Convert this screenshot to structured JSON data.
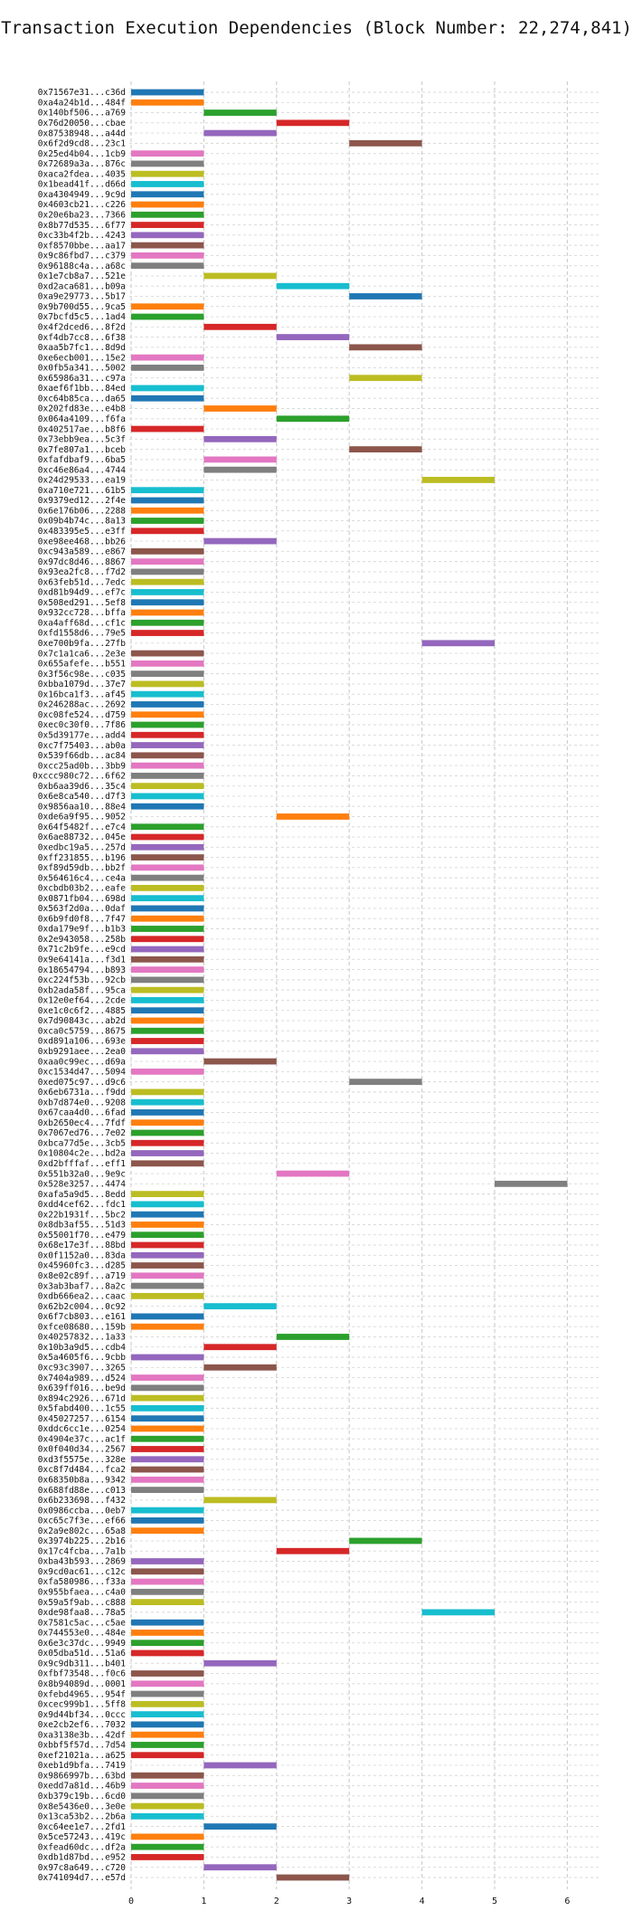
{
  "chart_data": {
    "type": "bar",
    "orientation": "horizontal-gantt",
    "title": "Transaction Execution Dependencies (Block Number: 22,274,841)",
    "xlabel": "",
    "ylabel": "",
    "xlim": [
      0,
      6.3
    ],
    "xticks": [
      0,
      1,
      2,
      3,
      4,
      5,
      6
    ],
    "grid": "vertical dashed",
    "palette": [
      "#1f77b4",
      "#ff7f0e",
      "#2ca02c",
      "#d62728",
      "#9467bd",
      "#8c564b",
      "#e377c2",
      "#7f7f7f",
      "#bcbd22",
      "#17becf"
    ],
    "series": [
      {
        "label": "0x71567e31...c36d",
        "start": 0
      },
      {
        "label": "0xa4a24b1d...484f",
        "start": 0
      },
      {
        "label": "0x140bf506...a769",
        "start": 1
      },
      {
        "label": "0x76d20050...cbae",
        "start": 2
      },
      {
        "label": "0x87538948...a44d",
        "start": 1
      },
      {
        "label": "0x6f2d9cd8...23c1",
        "start": 3
      },
      {
        "label": "0x25ed4b04...1cb9",
        "start": 0
      },
      {
        "label": "0x72689a3a...876c",
        "start": 0
      },
      {
        "label": "0xaca2fdea...4035",
        "start": 0
      },
      {
        "label": "0x1bead41f...d66d",
        "start": 0
      },
      {
        "label": "0xa4304949...9c9d",
        "start": 0
      },
      {
        "label": "0x4603cb21...c226",
        "start": 0
      },
      {
        "label": "0x20e6ba23...7366",
        "start": 0
      },
      {
        "label": "0x8b77d535...6f77",
        "start": 0
      },
      {
        "label": "0xc33b4f2b...4243",
        "start": 0
      },
      {
        "label": "0xf8570bbe...aa17",
        "start": 0
      },
      {
        "label": "0x9c86fbd7...c379",
        "start": 0
      },
      {
        "label": "0x96188c4a...a68c",
        "start": 0
      },
      {
        "label": "0x1e7cb8a7...521e",
        "start": 1
      },
      {
        "label": "0xd2aca681...b09a",
        "start": 2
      },
      {
        "label": "0xa9e29773...5b17",
        "start": 3
      },
      {
        "label": "0x9b700d55...9ca5",
        "start": 0
      },
      {
        "label": "0x7bcfd5c5...1ad4",
        "start": 0
      },
      {
        "label": "0x4f2dced6...8f2d",
        "start": 1
      },
      {
        "label": "0xf4db7cc8...6f38",
        "start": 2
      },
      {
        "label": "0xaa5b7fc1...8d9d",
        "start": 3
      },
      {
        "label": "0xe6ecb001...15e2",
        "start": 0
      },
      {
        "label": "0x0fb5a341...5002",
        "start": 0
      },
      {
        "label": "0x65986a31...c97a",
        "start": 3
      },
      {
        "label": "0xaef6f1bb...84ed",
        "start": 0
      },
      {
        "label": "0xc64b85ca...da65",
        "start": 0
      },
      {
        "label": "0x202fd83e...e4b8",
        "start": 1
      },
      {
        "label": "0x064a4109...f6fa",
        "start": 2
      },
      {
        "label": "0x402517ae...b8f6",
        "start": 0
      },
      {
        "label": "0x73ebb9ea...5c3f",
        "start": 1
      },
      {
        "label": "0x7fe807a1...bceb",
        "start": 3
      },
      {
        "label": "0xfafdbaf9...6ba5",
        "start": 1
      },
      {
        "label": "0xc46e86a4...4744",
        "start": 1
      },
      {
        "label": "0x24d29533...ea19",
        "start": 4
      },
      {
        "label": "0xa710e721...61b5",
        "start": 0
      },
      {
        "label": "0x9379ed12...2f4e",
        "start": 0
      },
      {
        "label": "0x6e176b06...2288",
        "start": 0
      },
      {
        "label": "0x09b4b74c...8a13",
        "start": 0
      },
      {
        "label": "0x483395e5...e3ff",
        "start": 0
      },
      {
        "label": "0xe98ee468...bb26",
        "start": 1
      },
      {
        "label": "0xc943a589...e867",
        "start": 0
      },
      {
        "label": "0x97dc8d46...8867",
        "start": 0
      },
      {
        "label": "0x93ea2fc8...f7d2",
        "start": 0
      },
      {
        "label": "0x63feb51d...7edc",
        "start": 0
      },
      {
        "label": "0xd81b94d9...ef7c",
        "start": 0
      },
      {
        "label": "0x508ed291...5ef8",
        "start": 0
      },
      {
        "label": "0x932cc728...bffa",
        "start": 0
      },
      {
        "label": "0xa4aff68d...cf1c",
        "start": 0
      },
      {
        "label": "0xfd1558d6...79e5",
        "start": 0
      },
      {
        "label": "0xe700b9fa...27fb",
        "start": 4
      },
      {
        "label": "0x7c1a1ca6...2e3e",
        "start": 0
      },
      {
        "label": "0x655afefe...b551",
        "start": 0
      },
      {
        "label": "0x3f56c98e...c035",
        "start": 0
      },
      {
        "label": "0xbba1079d...37e7",
        "start": 0
      },
      {
        "label": "0x16bca1f3...af45",
        "start": 0
      },
      {
        "label": "0x246288ac...2692",
        "start": 0
      },
      {
        "label": "0xc08fe524...d759",
        "start": 0
      },
      {
        "label": "0xec0c30f0...7f86",
        "start": 0
      },
      {
        "label": "0x5d39177e...add4",
        "start": 0
      },
      {
        "label": "0xc7f75403...ab0a",
        "start": 0
      },
      {
        "label": "0x539f66db...ac84",
        "start": 0
      },
      {
        "label": "0xcc25ad0b...3bb9",
        "start": 0
      },
      {
        "label": "0xccc980c72...6f62",
        "start": 0
      },
      {
        "label": "0xb6aa39d6...35c4",
        "start": 0
      },
      {
        "label": "0x6e8ca540...d7f3",
        "start": 0
      },
      {
        "label": "0x9856aa10...88e4",
        "start": 0
      },
      {
        "label": "0xde6a9f95...9052",
        "start": 2
      },
      {
        "label": "0x64f5482f...e7c4",
        "start": 0
      },
      {
        "label": "0x6ae88732...045e",
        "start": 0
      },
      {
        "label": "0xedbc19a5...257d",
        "start": 0
      },
      {
        "label": "0xff231855...b196",
        "start": 0
      },
      {
        "label": "0xf89d59db...bb2f",
        "start": 0
      },
      {
        "label": "0x564616c4...ce4a",
        "start": 0
      },
      {
        "label": "0xcbdb03b2...eafe",
        "start": 0
      },
      {
        "label": "0x0871fb04...698d",
        "start": 0
      },
      {
        "label": "0x563f2d0a...0daf",
        "start": 0
      },
      {
        "label": "0x6b9fd0f8...7f47",
        "start": 0
      },
      {
        "label": "0xda179e9f...b1b3",
        "start": 0
      },
      {
        "label": "0x2e943058...258b",
        "start": 0
      },
      {
        "label": "0x71c2b9fe...e9cd",
        "start": 0
      },
      {
        "label": "0x9e64141a...f3d1",
        "start": 0
      },
      {
        "label": "0x18654794...b893",
        "start": 0
      },
      {
        "label": "0xc224f53b...92cb",
        "start": 0
      },
      {
        "label": "0xb2ada58f...95ca",
        "start": 0
      },
      {
        "label": "0x12e0ef64...2cde",
        "start": 0
      },
      {
        "label": "0xe1c0c6f2...4885",
        "start": 0
      },
      {
        "label": "0x7d90843c...ab2d",
        "start": 0
      },
      {
        "label": "0xca0c5759...8675",
        "start": 0
      },
      {
        "label": "0xd891a106...693e",
        "start": 0
      },
      {
        "label": "0xb9291aee...2ea0",
        "start": 0
      },
      {
        "label": "0xaa0c99ec...d69a",
        "start": 1
      },
      {
        "label": "0xc1534d47...5094",
        "start": 0
      },
      {
        "label": "0xed075c97...d9c6",
        "start": 3
      },
      {
        "label": "0x6eb6731a...f9dd",
        "start": 0
      },
      {
        "label": "0xb7d874e0...9208",
        "start": 0
      },
      {
        "label": "0x67caa4d0...6fad",
        "start": 0
      },
      {
        "label": "0xb2650ec4...7fdf",
        "start": 0
      },
      {
        "label": "0x7067ed76...7e02",
        "start": 0
      },
      {
        "label": "0xbca77d5e...3cb5",
        "start": 0
      },
      {
        "label": "0x10804c2e...bd2a",
        "start": 0
      },
      {
        "label": "0xd2bfffaf...eff1",
        "start": 0
      },
      {
        "label": "0x551b32a0...9e9c",
        "start": 2
      },
      {
        "label": "0x528e3257...4474",
        "start": 5
      },
      {
        "label": "0xafa5a9d5...8edd",
        "start": 0
      },
      {
        "label": "0xdd4cef62...fdc1",
        "start": 0
      },
      {
        "label": "0x22b1931f...5bc2",
        "start": 0
      },
      {
        "label": "0x8db3af55...51d3",
        "start": 0
      },
      {
        "label": "0x55001f70...e479",
        "start": 0
      },
      {
        "label": "0x68e17e3f...88bd",
        "start": 0
      },
      {
        "label": "0x0f1152a0...83da",
        "start": 0
      },
      {
        "label": "0x45960fc3...d285",
        "start": 0
      },
      {
        "label": "0x8e02c89f...a719",
        "start": 0
      },
      {
        "label": "0x3ab3baf7...8a2c",
        "start": 0
      },
      {
        "label": "0xdb666ea2...caac",
        "start": 0
      },
      {
        "label": "0x62b2c004...0c92",
        "start": 1
      },
      {
        "label": "0x6f7cb803...e161",
        "start": 0
      },
      {
        "label": "0xfce08680...159b",
        "start": 0
      },
      {
        "label": "0x40257832...1a33",
        "start": 2
      },
      {
        "label": "0x10b3a9d5...cdb4",
        "start": 1
      },
      {
        "label": "0x5a4605f6...9cbb",
        "start": 0
      },
      {
        "label": "0xc93c3907...3265",
        "start": 1
      },
      {
        "label": "0x7404a989...d524",
        "start": 0
      },
      {
        "label": "0x639ff016...be9d",
        "start": 0
      },
      {
        "label": "0x894c2926...671d",
        "start": 0
      },
      {
        "label": "0x5fabd400...1c55",
        "start": 0
      },
      {
        "label": "0x45027257...6154",
        "start": 0
      },
      {
        "label": "0xddc6cc1e...0254",
        "start": 0
      },
      {
        "label": "0x4904e37c...ac1f",
        "start": 0
      },
      {
        "label": "0x0f040d34...2567",
        "start": 0
      },
      {
        "label": "0xd3f5575e...328e",
        "start": 0
      },
      {
        "label": "0xc8f7d484...fca2",
        "start": 0
      },
      {
        "label": "0x68350b8a...9342",
        "start": 0
      },
      {
        "label": "0x688fd88e...c013",
        "start": 0
      },
      {
        "label": "0x6b233698...f432",
        "start": 1
      },
      {
        "label": "0x0986ccba...0eb7",
        "start": 0
      },
      {
        "label": "0xc65c7f3e...ef66",
        "start": 0
      },
      {
        "label": "0x2a9e802c...65a8",
        "start": 0
      },
      {
        "label": "0x3974b225...2b16",
        "start": 3
      },
      {
        "label": "0x17c4fcba...7a1b",
        "start": 2
      },
      {
        "label": "0xba43b593...2869",
        "start": 0
      },
      {
        "label": "0x9cd0ac61...c12c",
        "start": 0
      },
      {
        "label": "0xfa580986...f33a",
        "start": 0
      },
      {
        "label": "0x955bfaea...c4a0",
        "start": 0
      },
      {
        "label": "0x59a5f9ab...c888",
        "start": 0
      },
      {
        "label": "0xde98faa8...78a5",
        "start": 4
      },
      {
        "label": "0x7581c5ac...c5ae",
        "start": 0
      },
      {
        "label": "0x744553e0...484e",
        "start": 0
      },
      {
        "label": "0x6e3c37dc...9949",
        "start": 0
      },
      {
        "label": "0x05dba51d...51a6",
        "start": 0
      },
      {
        "label": "0x9c9db311...b401",
        "start": 1
      },
      {
        "label": "0xfbf73548...f0c6",
        "start": 0
      },
      {
        "label": "0x8b94089d...0001",
        "start": 0
      },
      {
        "label": "0xfebd4965...954f",
        "start": 0
      },
      {
        "label": "0xcec999b1...5ff8",
        "start": 0
      },
      {
        "label": "0x9d44bf34...0ccc",
        "start": 0
      },
      {
        "label": "0xe2cb2ef6...7032",
        "start": 0
      },
      {
        "label": "0xa3138e3b...42df",
        "start": 0
      },
      {
        "label": "0xbbf5f57d...7d54",
        "start": 0
      },
      {
        "label": "0xef21021a...a625",
        "start": 0
      },
      {
        "label": "0xeb1d9bfa...7419",
        "start": 1
      },
      {
        "label": "0x9866997b...63bd",
        "start": 0
      },
      {
        "label": "0xedd7a81d...46b9",
        "start": 0
      },
      {
        "label": "0xb379c19b...6cd0",
        "start": 0
      },
      {
        "label": "0x8e5436e0...3e0e",
        "start": 0
      },
      {
        "label": "0x13ca53b2...2b6a",
        "start": 0
      },
      {
        "label": "0xc64ee1e7...2fd1",
        "start": 1
      },
      {
        "label": "0x5ce57243...419c",
        "start": 0
      },
      {
        "label": "0xfead60dc...df2a",
        "start": 0
      },
      {
        "label": "0xdb1d87bd...e952",
        "start": 0
      },
      {
        "label": "0x97c8a649...c720",
        "start": 1
      },
      {
        "label": "0x741094d7...e57d",
        "start": 2
      }
    ]
  }
}
